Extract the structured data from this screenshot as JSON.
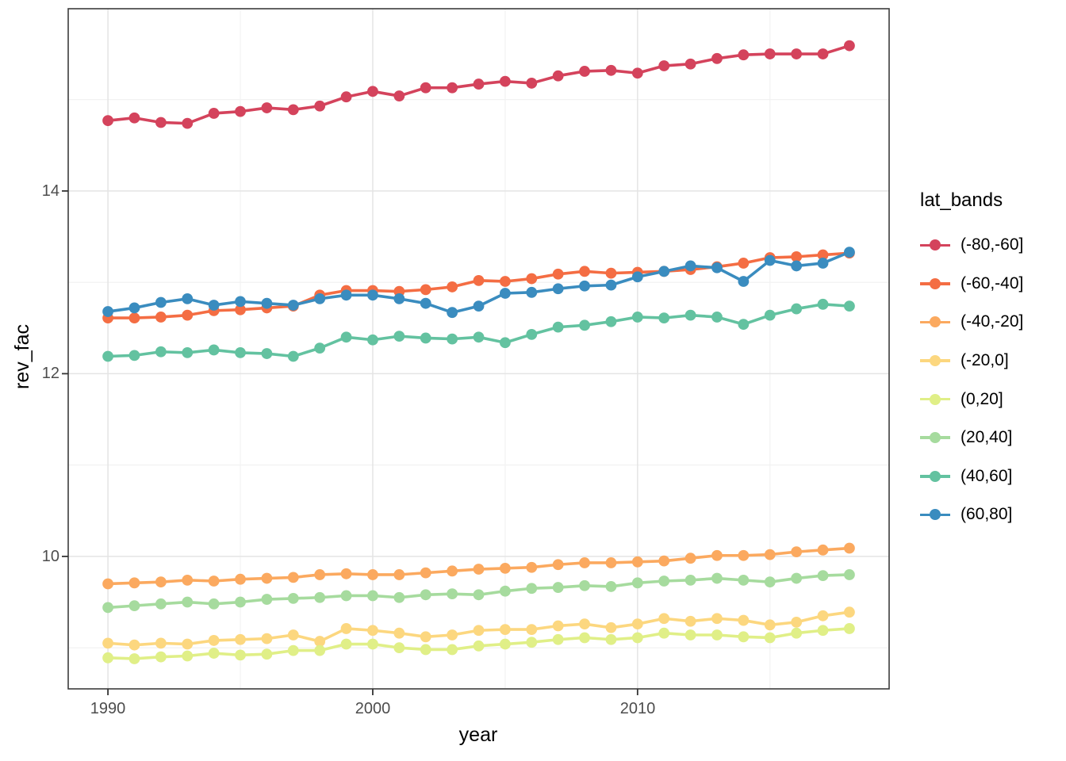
{
  "chart_data": {
    "type": "line",
    "title": "",
    "xlabel": "year",
    "ylabel": "rev_fac",
    "legend_title": "lat_bands",
    "legend_position": "right",
    "grid": true,
    "marker": "circle",
    "x": [
      1990,
      1991,
      1992,
      1993,
      1994,
      1995,
      1996,
      1997,
      1998,
      1999,
      2000,
      2001,
      2002,
      2003,
      2004,
      2005,
      2006,
      2007,
      2008,
      2009,
      2010,
      2011,
      2012,
      2013,
      2014,
      2015,
      2016,
      2017,
      2018
    ],
    "xlim": [
      1988.5,
      2019.5
    ],
    "ylim": [
      8.55,
      15.995
    ],
    "x_tick_labels": [
      "1990",
      "2000",
      "2010"
    ],
    "y_tick_labels": [
      "14",
      "12",
      "10"
    ],
    "x_major_ticks": [
      1990,
      2000,
      2010
    ],
    "x_minor_gridlines": [
      1995,
      2005,
      2015
    ],
    "y_major_ticks": [
      14,
      12,
      10
    ],
    "y_minor_gridlines": [
      9,
      11,
      13,
      15
    ],
    "series": [
      {
        "name": "(-80,-60]",
        "color": "#D4435O",
        "values": [
          14.77,
          14.8,
          14.75,
          14.74,
          14.85,
          14.87,
          14.91,
          14.89,
          14.93,
          15.03,
          15.09,
          15.04,
          15.13,
          15.13,
          15.17,
          15.2,
          15.18,
          15.26,
          15.31,
          15.32,
          15.29,
          15.37,
          15.39,
          15.45,
          15.49,
          15.5,
          15.5,
          15.5,
          15.59
        ]
      },
      {
        "name": "(-60,-40]",
        "color": "#F46D43",
        "values": [
          12.61,
          12.61,
          12.62,
          12.64,
          12.69,
          12.7,
          12.72,
          12.74,
          12.86,
          12.91,
          12.91,
          12.9,
          12.92,
          12.95,
          13.02,
          13.01,
          13.04,
          13.09,
          13.12,
          13.1,
          13.11,
          13.12,
          13.14,
          13.17,
          13.21,
          13.27,
          13.28,
          13.3,
          13.32
        ]
      },
      {
        "name": "(-40,-20]",
        "color": "#FBA95F",
        "values": [
          9.7,
          9.71,
          9.72,
          9.74,
          9.73,
          9.75,
          9.76,
          9.77,
          9.8,
          9.81,
          9.8,
          9.8,
          9.82,
          9.84,
          9.86,
          9.87,
          9.88,
          9.91,
          9.93,
          9.93,
          9.94,
          9.95,
          9.98,
          10.01,
          10.01,
          10.02,
          10.05,
          10.07,
          10.09
        ]
      },
      {
        "name": "(-20,0]",
        "color": "#FCD77F",
        "values": [
          9.05,
          9.03,
          9.05,
          9.04,
          9.08,
          9.09,
          9.1,
          9.14,
          9.07,
          9.21,
          9.19,
          9.16,
          9.12,
          9.14,
          9.19,
          9.2,
          9.2,
          9.24,
          9.26,
          9.22,
          9.26,
          9.32,
          9.29,
          9.32,
          9.3,
          9.25,
          9.28,
          9.35,
          9.39
        ]
      },
      {
        "name": "(0,20]",
        "color": "#E0EF87",
        "values": [
          8.89,
          8.88,
          8.9,
          8.91,
          8.94,
          8.92,
          8.93,
          8.97,
          8.97,
          9.04,
          9.04,
          9.0,
          8.98,
          8.98,
          9.02,
          9.04,
          9.06,
          9.09,
          9.11,
          9.09,
          9.11,
          9.16,
          9.14,
          9.14,
          9.12,
          9.11,
          9.16,
          9.19,
          9.21
        ]
      },
      {
        "name": "(20,40]",
        "color": "#A6DB9E",
        "values": [
          9.44,
          9.46,
          9.48,
          9.5,
          9.48,
          9.5,
          9.53,
          9.54,
          9.55,
          9.57,
          9.57,
          9.55,
          9.58,
          9.59,
          9.58,
          9.62,
          9.65,
          9.66,
          9.68,
          9.67,
          9.71,
          9.73,
          9.74,
          9.76,
          9.74,
          9.72,
          9.76,
          9.79,
          9.8
        ]
      },
      {
        "name": "(40,60]",
        "color": "#63C2A0",
        "values": [
          12.19,
          12.2,
          12.24,
          12.23,
          12.26,
          12.23,
          12.22,
          12.19,
          12.28,
          12.4,
          12.37,
          12.41,
          12.39,
          12.38,
          12.4,
          12.34,
          12.43,
          12.51,
          12.53,
          12.57,
          12.62,
          12.61,
          12.64,
          12.62,
          12.54,
          12.64,
          12.71,
          12.76,
          12.74
        ]
      },
      {
        "name": "(60,80]",
        "color": "#3A8CBF",
        "values": [
          12.68,
          12.72,
          12.78,
          12.82,
          12.75,
          12.79,
          12.77,
          12.75,
          12.82,
          12.86,
          12.86,
          12.82,
          12.77,
          12.67,
          12.74,
          12.88,
          12.89,
          12.93,
          12.96,
          12.97,
          13.06,
          13.12,
          13.18,
          13.16,
          13.01,
          13.24,
          13.18,
          13.21,
          13.33
        ]
      }
    ]
  }
}
